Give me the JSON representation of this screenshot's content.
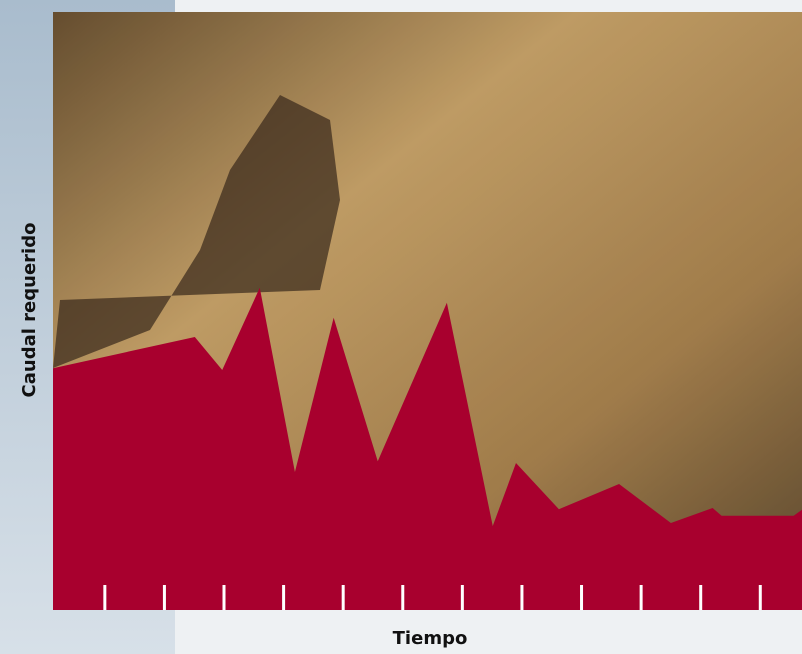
{
  "chart_data": {
    "type": "area",
    "x_label": "Tiempo",
    "y_label": "Caudal requerido",
    "x": [
      0,
      2.38,
      2.84,
      3.47,
      4.06,
      4.71,
      5.45,
      6.61,
      7.38,
      7.77,
      8.49,
      9.5,
      10.37,
      11.07,
      11.22,
      12.43,
      12.57
    ],
    "values": [
      40.3,
      45.5,
      40,
      53.7,
      23,
      48.7,
      24.8,
      51.2,
      14,
      24.5,
      16.8,
      21,
      14.5,
      17,
      15.7,
      15.7,
      16.7
    ],
    "color": "#a8002e",
    "xlim": [
      0,
      12.57
    ],
    "xticks": [
      0.87,
      1.87,
      2.87,
      3.87,
      4.87,
      5.87,
      6.87,
      7.87,
      8.87,
      9.87,
      10.87,
      11.87
    ],
    "ylim": [
      0,
      100
    ]
  }
}
